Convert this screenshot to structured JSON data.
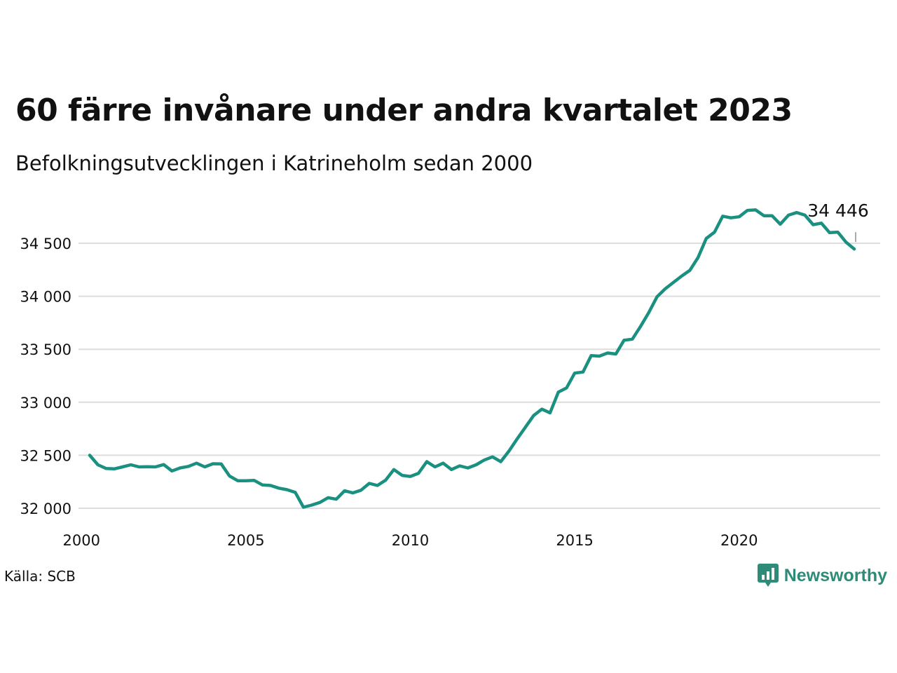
{
  "title": "60 färre invånare under andra kvartalet 2023",
  "subtitle": "Befolkningsutvecklingen i Katrineholm sedan 2000",
  "source": "Källa: SCB",
  "brand": {
    "name": "Newsworthy",
    "icon": "newsworthy-logo-icon",
    "color": "#2e8b77"
  },
  "colors": {
    "line": "#1a9080",
    "grid": "#dddddd",
    "text": "#111111"
  },
  "chart_data": {
    "type": "line",
    "title": "",
    "xlabel": "",
    "ylabel": "",
    "xlim": [
      2000,
      2024
    ],
    "ylim": [
      32000,
      34800
    ],
    "x_ticks": [
      2000,
      2005,
      2010,
      2015,
      2020
    ],
    "x_tick_labels": [
      "2000",
      "2005",
      "2010",
      "2015",
      "2020"
    ],
    "y_ticks": [
      32000,
      32500,
      33000,
      33500,
      34000,
      34500
    ],
    "y_tick_labels": [
      "32 000",
      "32 500",
      "33 000",
      "33 500",
      "34 000",
      "34 500"
    ],
    "grid": "horizontal",
    "end_label": "34 446",
    "series": [
      {
        "x_start": 2000.25,
        "x_step": 0.25,
        "values": [
          32500,
          32410,
          32375,
          32372,
          32390,
          32410,
          32390,
          32392,
          32390,
          32412,
          32352,
          32380,
          32395,
          32425,
          32390,
          32420,
          32418,
          32305,
          32260,
          32260,
          32263,
          32220,
          32215,
          32190,
          32175,
          32150,
          32010,
          32030,
          32055,
          32100,
          32085,
          32165,
          32145,
          32170,
          32235,
          32215,
          32265,
          32365,
          32310,
          32300,
          32330,
          32440,
          32390,
          32425,
          32365,
          32400,
          32380,
          32410,
          32455,
          32485,
          32440,
          32540,
          32655,
          32765,
          32875,
          32935,
          32900,
          33095,
          33135,
          33275,
          33285,
          33440,
          33435,
          33465,
          33455,
          33585,
          33595,
          33715,
          33845,
          33995,
          34070,
          34130,
          34190,
          34245,
          34365,
          34545,
          34605,
          34755,
          34740,
          34750,
          34810,
          34815,
          34760,
          34760,
          34680,
          34765,
          34790,
          34765,
          34675,
          34690,
          34600,
          34605,
          34510,
          34446
        ]
      }
    ]
  }
}
